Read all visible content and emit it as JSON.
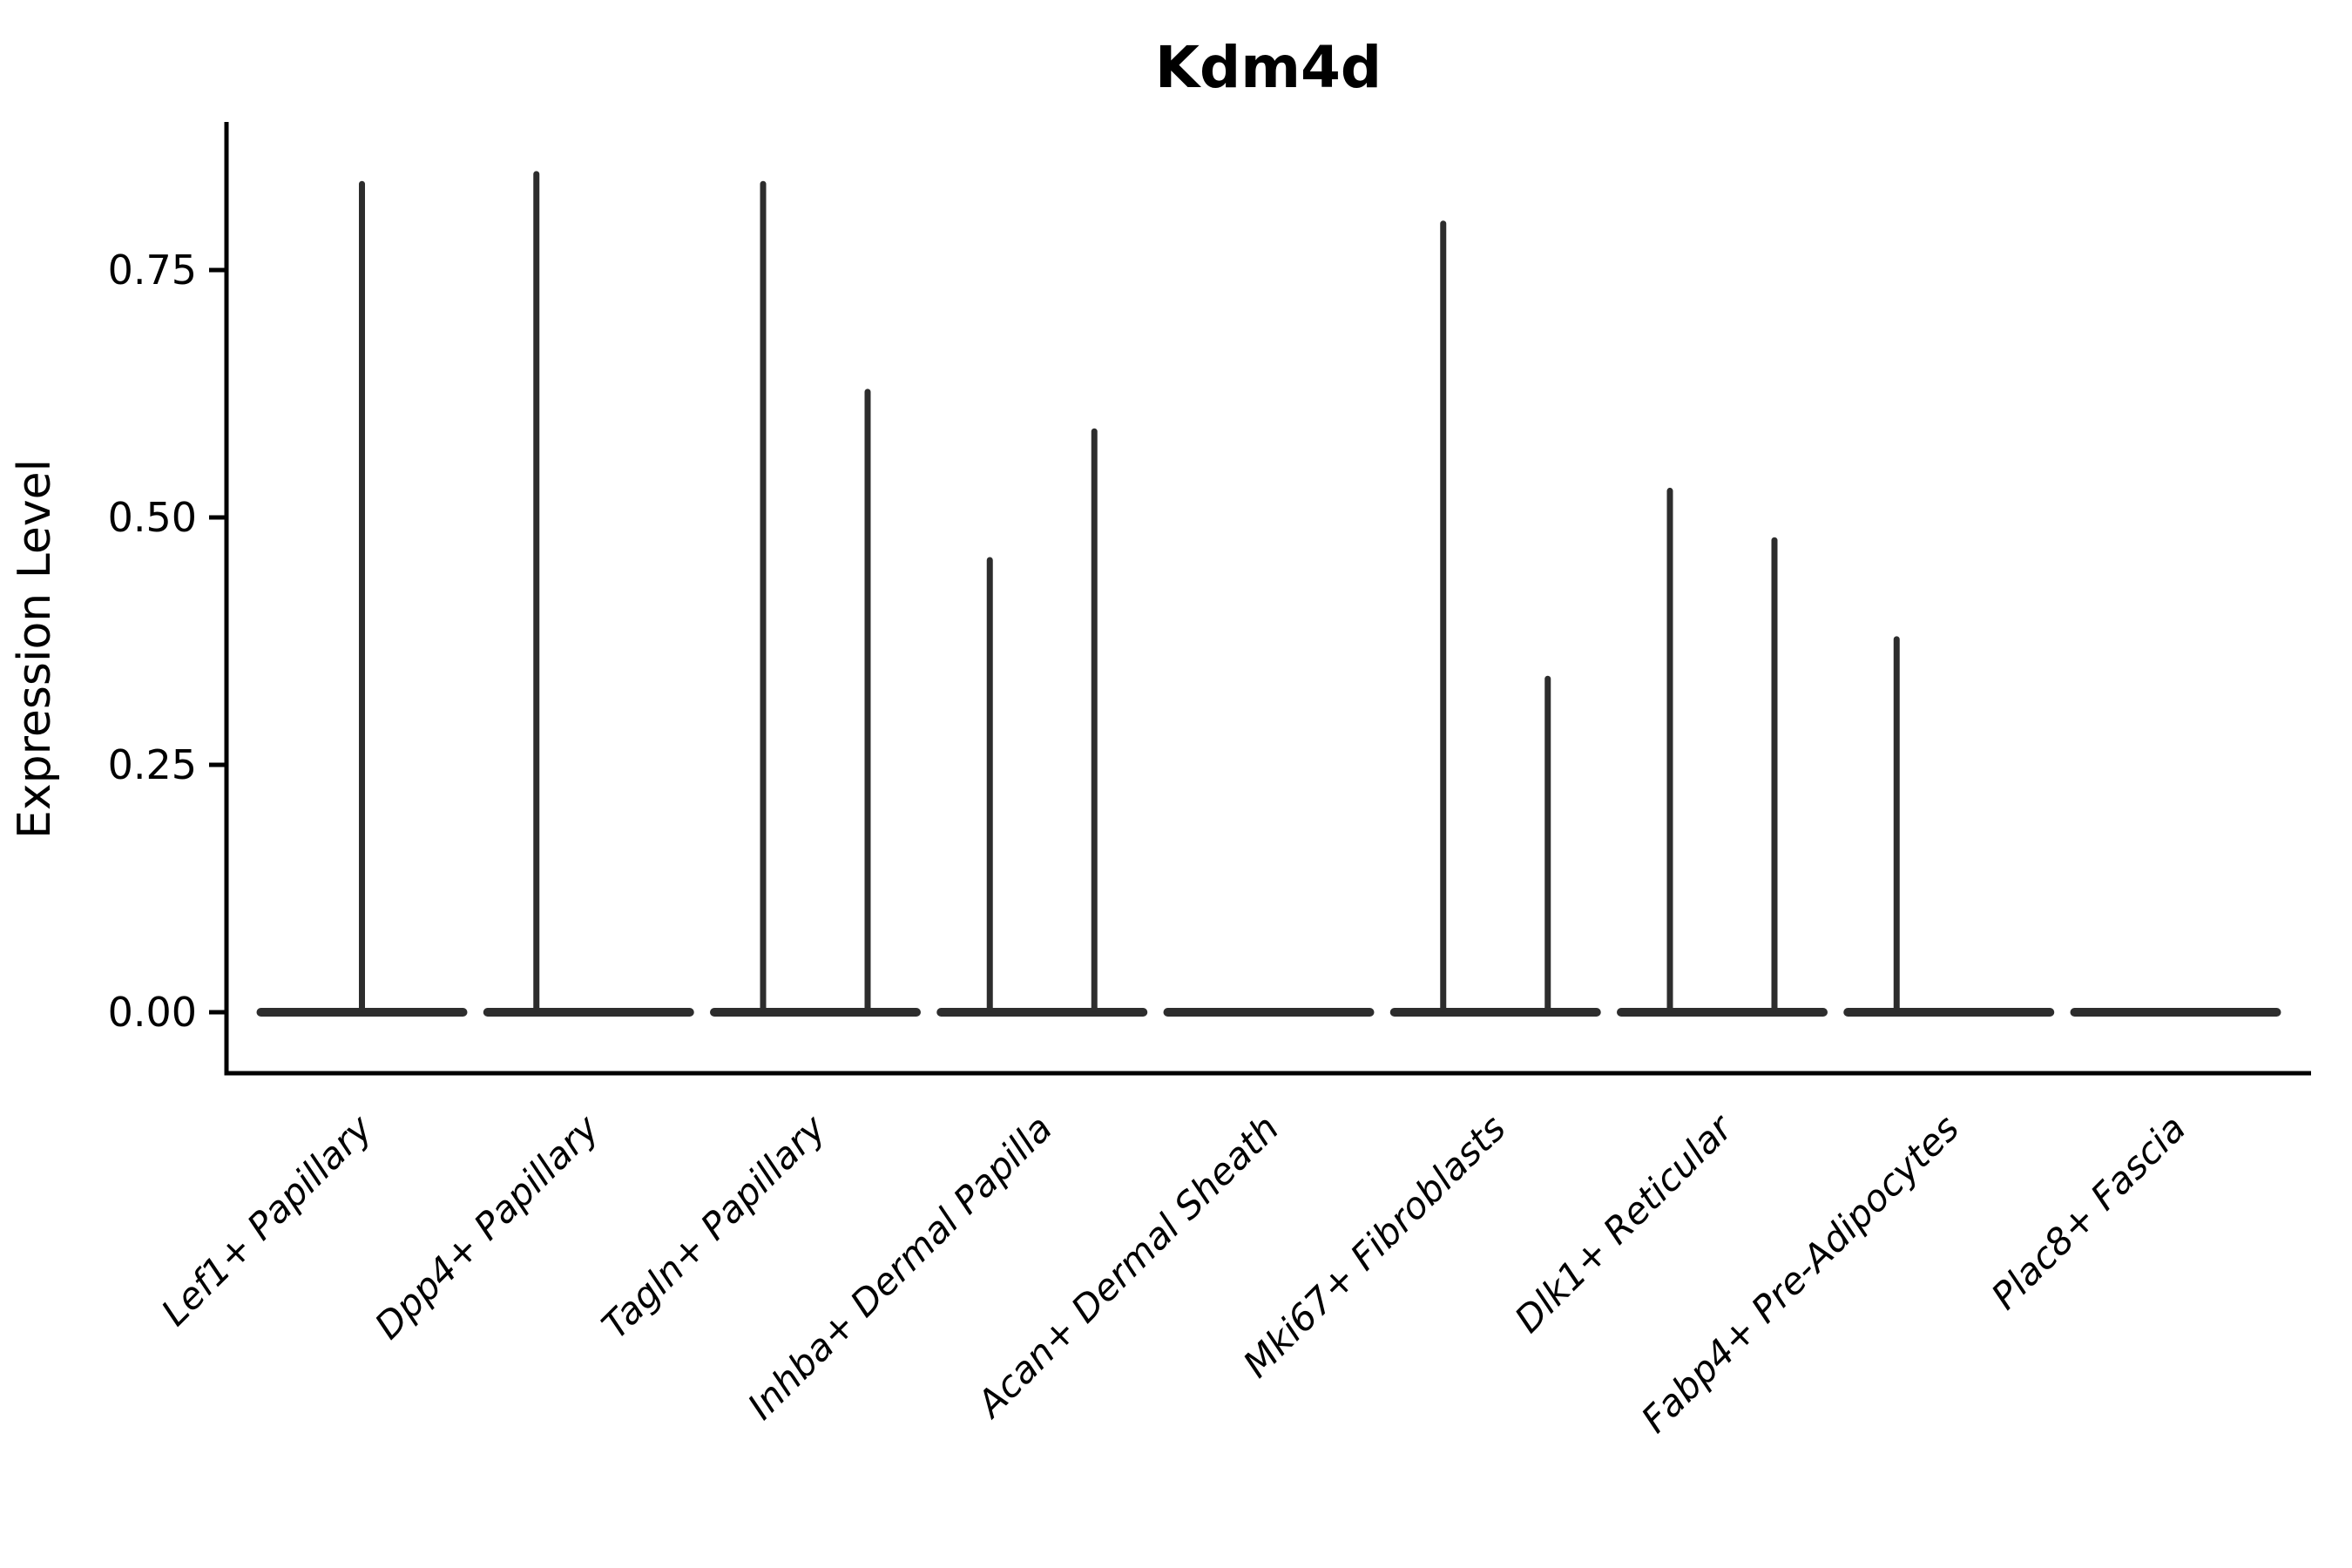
{
  "figure": {
    "title": "Kdm4d",
    "background": "#ffffff"
  },
  "chart_data": {
    "type": "violin",
    "title": "Kdm4d",
    "ylabel": "Expression Level",
    "xlabel": "",
    "ylim": [
      -0.06,
      0.9
    ],
    "ytick_labels": [
      "0.00",
      "0.25",
      "0.50",
      "0.75"
    ],
    "ytick_values": [
      0,
      0.25,
      0.5,
      0.75
    ],
    "grid": false,
    "legend": null,
    "ink_color": "#2d2d2d",
    "axis_color": "#000000",
    "categories": [
      "Lef1+ Papillary",
      "Dpp4+ Papillary",
      "Tagln+ Papillary",
      "Inhba+ Dermal Papilla",
      "Acan+ Dermal Sheath",
      "Mki67+ Fibroblasts",
      "Dlk1+ Reticular",
      "Fabp4+ Pre-Adipocytes",
      "Plac8+ Fascia"
    ],
    "violins": [
      {
        "category": "Lef1+ Papillary",
        "glyphs": [
          {
            "offset": "center",
            "max": 0.84
          }
        ]
      },
      {
        "category": "Dpp4+ Papillary",
        "glyphs": [
          {
            "offset": "left",
            "max": 0.85
          },
          {
            "offset": "right",
            "max": 0
          }
        ]
      },
      {
        "category": "Tagln+ Papillary",
        "glyphs": [
          {
            "offset": "left",
            "max": 0.84
          },
          {
            "offset": "right",
            "max": 0.63
          }
        ]
      },
      {
        "category": "Inhba+ Dermal Papilla",
        "glyphs": [
          {
            "offset": "left",
            "max": 0.46
          },
          {
            "offset": "right",
            "max": 0.59
          }
        ]
      },
      {
        "category": "Acan+ Dermal Sheath",
        "glyphs": [
          {
            "offset": "left",
            "max": 0
          },
          {
            "offset": "right",
            "max": 0
          }
        ]
      },
      {
        "category": "Mki67+ Fibroblasts",
        "glyphs": [
          {
            "offset": "left",
            "max": 0.8
          },
          {
            "offset": "right",
            "max": 0.34
          }
        ]
      },
      {
        "category": "Dlk1+ Reticular",
        "glyphs": [
          {
            "offset": "left",
            "max": 0.53
          },
          {
            "offset": "right",
            "max": 0.48
          }
        ]
      },
      {
        "category": "Fabp4+ Pre-Adipocytes",
        "glyphs": [
          {
            "offset": "left",
            "max": 0.38
          },
          {
            "offset": "right",
            "max": 0
          }
        ]
      },
      {
        "category": "Plac8+ Fascia",
        "glyphs": [
          {
            "offset": "left",
            "max": 0
          },
          {
            "offset": "right",
            "max": 0
          }
        ]
      }
    ]
  }
}
